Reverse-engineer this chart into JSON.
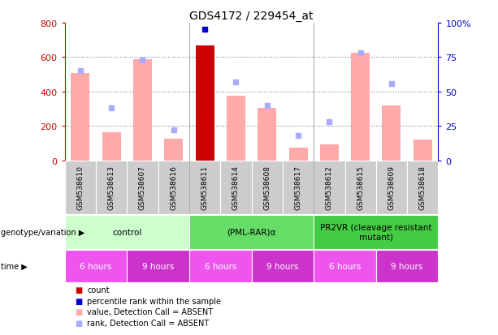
{
  "title": "GDS4172 / 229454_at",
  "samples": [
    "GSM538610",
    "GSM538613",
    "GSM538607",
    "GSM538616",
    "GSM538611",
    "GSM538614",
    "GSM538608",
    "GSM538617",
    "GSM538612",
    "GSM538615",
    "GSM538609",
    "GSM538618"
  ],
  "bar_values": [
    510,
    165,
    590,
    125,
    670,
    375,
    305,
    75,
    95,
    625,
    320,
    120
  ],
  "bar_colors": [
    "#ffaaaa",
    "#ffaaaa",
    "#ffaaaa",
    "#ffaaaa",
    "#cc0000",
    "#ffaaaa",
    "#ffaaaa",
    "#ffaaaa",
    "#ffaaaa",
    "#ffaaaa",
    "#ffaaaa",
    "#ffaaaa"
  ],
  "rank_squares": [
    65,
    38,
    73,
    22,
    95,
    57,
    40,
    18,
    28,
    78,
    56,
    null
  ],
  "rank_colors": [
    "#aaaaff",
    "#aaaaff",
    "#aaaaff",
    "#aaaaff",
    "#0000cc",
    "#aaaaff",
    "#aaaaff",
    "#aaaaff",
    "#aaaaff",
    "#aaaaff",
    "#aaaaff",
    "#aaaaff"
  ],
  "ylim_left": [
    0,
    800
  ],
  "ylim_right": [
    0,
    100
  ],
  "yticks_left": [
    0,
    200,
    400,
    600,
    800
  ],
  "yticks_right": [
    0,
    25,
    50,
    75,
    100
  ],
  "yticklabels_right": [
    "0",
    "25",
    "50",
    "75",
    "100%"
  ],
  "genotype_groups": [
    {
      "label": "control",
      "start": 0,
      "end": 4,
      "color": "#ccffcc"
    },
    {
      "label": "(PML-RAR)α",
      "start": 4,
      "end": 8,
      "color": "#66dd66"
    },
    {
      "label": "PR2VR (cleavage resistant\nmutant)",
      "start": 8,
      "end": 12,
      "color": "#44cc44"
    }
  ],
  "time_groups": [
    {
      "label": "6 hours",
      "start": 0,
      "end": 2,
      "color": "#ee55ee"
    },
    {
      "label": "9 hours",
      "start": 2,
      "end": 4,
      "color": "#cc33cc"
    },
    {
      "label": "6 hours",
      "start": 4,
      "end": 6,
      "color": "#ee55ee"
    },
    {
      "label": "9 hours",
      "start": 6,
      "end": 8,
      "color": "#cc33cc"
    },
    {
      "label": "6 hours",
      "start": 8,
      "end": 10,
      "color": "#ee55ee"
    },
    {
      "label": "9 hours",
      "start": 10,
      "end": 12,
      "color": "#cc33cc"
    }
  ],
  "legend_items": [
    {
      "label": "count",
      "color": "#cc0000"
    },
    {
      "label": "percentile rank within the sample",
      "color": "#0000cc"
    },
    {
      "label": "value, Detection Call = ABSENT",
      "color": "#ffaaaa"
    },
    {
      "label": "rank, Detection Call = ABSENT",
      "color": "#aaaaff"
    }
  ],
  "left_axis_color": "#cc0000",
  "right_axis_color": "#0000cc",
  "grid_color": "#888888",
  "sample_box_color": "#cccccc",
  "figure_width": 6.13,
  "figure_height": 4.14,
  "dpi": 100
}
